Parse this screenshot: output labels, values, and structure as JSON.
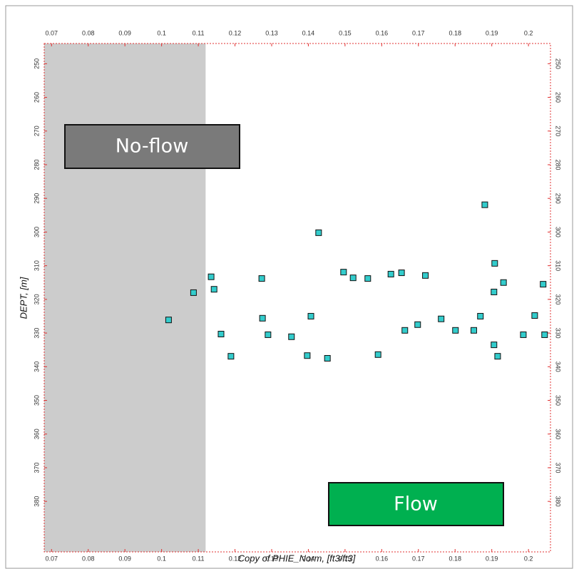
{
  "chart_data": {
    "type": "scatter",
    "x_label": "Copy of PHIE_Norm, [ft3/ft3]",
    "y_label": "DEPT, [m]",
    "xlim": [
      0.068,
      0.206
    ],
    "ylim": [
      244,
      395
    ],
    "y_inverted": true,
    "xticks": [
      0.07,
      0.08,
      0.09,
      0.1,
      0.11,
      0.12,
      0.13,
      0.14,
      0.15,
      0.16,
      0.17,
      0.18,
      0.19,
      0.2
    ],
    "yticks": [
      250,
      260,
      270,
      280,
      290,
      300,
      310,
      320,
      330,
      340,
      350,
      360,
      370,
      380
    ],
    "color": "#33cccc",
    "no_flow_cutoff": 0.112,
    "no_flow_label": "No-flow",
    "flow_label": "Flow",
    "x": [
      0.1019,
      0.1087,
      0.1135,
      0.1143,
      0.1162,
      0.1189,
      0.1273,
      0.1275,
      0.129,
      0.1354,
      0.1397,
      0.1407,
      0.1428,
      0.1452,
      0.1496,
      0.1522,
      0.1562,
      0.159,
      0.1625,
      0.1654,
      0.1663,
      0.1698,
      0.1719,
      0.1762,
      0.1801,
      0.1851,
      0.1869,
      0.1881,
      0.1908,
      0.1906,
      0.1932,
      0.1906,
      0.1916,
      0.1986,
      0.2017,
      0.204,
      0.2044
    ],
    "values": [
      326.1,
      318.0,
      313.3,
      317.0,
      330.3,
      336.9,
      313.8,
      325.6,
      330.5,
      331.1,
      336.7,
      325.0,
      300.2,
      337.5,
      311.9,
      313.6,
      313.8,
      336.4,
      312.5,
      312.1,
      329.2,
      327.5,
      312.9,
      325.8,
      329.2,
      329.2,
      325.0,
      291.9,
      309.3,
      317.8,
      315.0,
      333.5,
      336.9,
      330.5,
      324.8,
      315.5,
      330.5
    ]
  }
}
